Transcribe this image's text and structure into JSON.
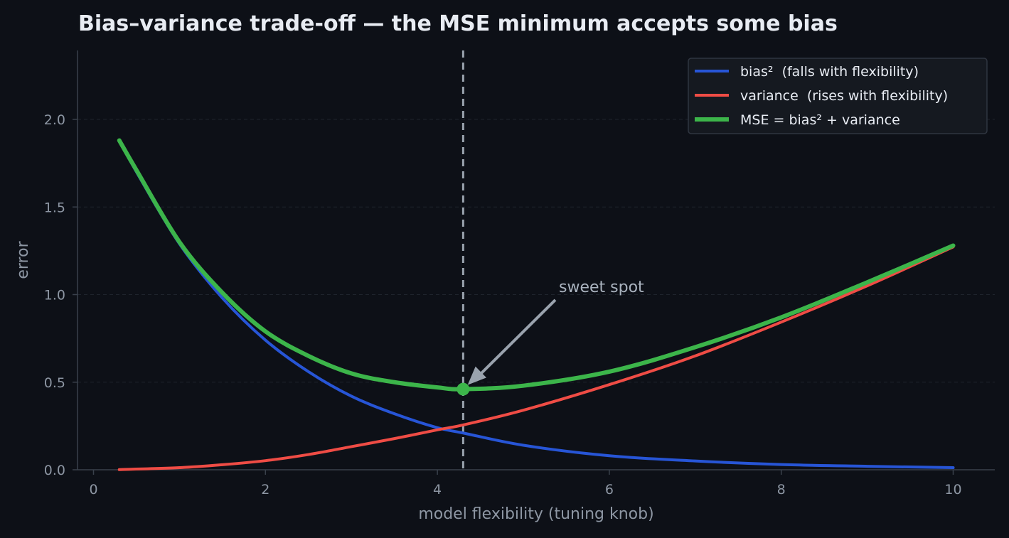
{
  "chart_data": {
    "type": "line",
    "title": "Bias–variance trade-off — the MSE minimum accepts some bias",
    "xlabel": "model flexibility (tuning knob)",
    "ylabel": "error",
    "xlim": [
      -0.2,
      10.5
    ],
    "ylim": [
      0,
      2.4
    ],
    "x_ticks": [
      "0",
      "2",
      "4",
      "6",
      "8",
      "10"
    ],
    "y_ticks": [
      "0.0",
      "0.5",
      "1.0",
      "1.5",
      "2.0"
    ],
    "grid": "horizontal, dashed",
    "legend_position": "top-right",
    "series": [
      {
        "name": "bias²  (falls with flexibility)",
        "color": "#2755d6",
        "x": [
          0.3,
          0.5,
          1,
          1.5,
          2,
          2.5,
          3,
          3.5,
          4,
          4.3,
          5,
          6,
          7,
          8,
          9,
          10
        ],
        "y": [
          1.88,
          1.7,
          1.29,
          0.98,
          0.74,
          0.56,
          0.42,
          0.32,
          0.24,
          0.21,
          0.14,
          0.08,
          0.05,
          0.03,
          0.02,
          0.012
        ]
      },
      {
        "name": "variance  (rises with flexibility)",
        "color": "#ef4c45",
        "x": [
          0.3,
          1,
          1.5,
          2,
          2.5,
          3,
          3.5,
          4,
          4.3,
          5,
          6,
          7,
          8,
          9,
          10
        ],
        "y": [
          0.001,
          0.012,
          0.029,
          0.052,
          0.087,
          0.132,
          0.178,
          0.228,
          0.256,
          0.34,
          0.486,
          0.65,
          0.843,
          1.05,
          1.272
        ]
      },
      {
        "name": "MSE = bias² + variance",
        "color": "#3cb54a",
        "x": [
          0.3,
          0.5,
          1,
          1.5,
          2,
          2.5,
          3,
          3.5,
          4,
          4.3,
          5,
          6,
          7,
          8,
          9,
          10
        ],
        "y": [
          1.88,
          1.71,
          1.3,
          1.01,
          0.79,
          0.65,
          0.55,
          0.5,
          0.47,
          0.46,
          0.48,
          0.56,
          0.7,
          0.87,
          1.07,
          1.28
        ]
      }
    ],
    "optimum": {
      "x": 4.3,
      "y": 0.46,
      "label": "sweet spot",
      "color": "#3cb54a"
    }
  }
}
